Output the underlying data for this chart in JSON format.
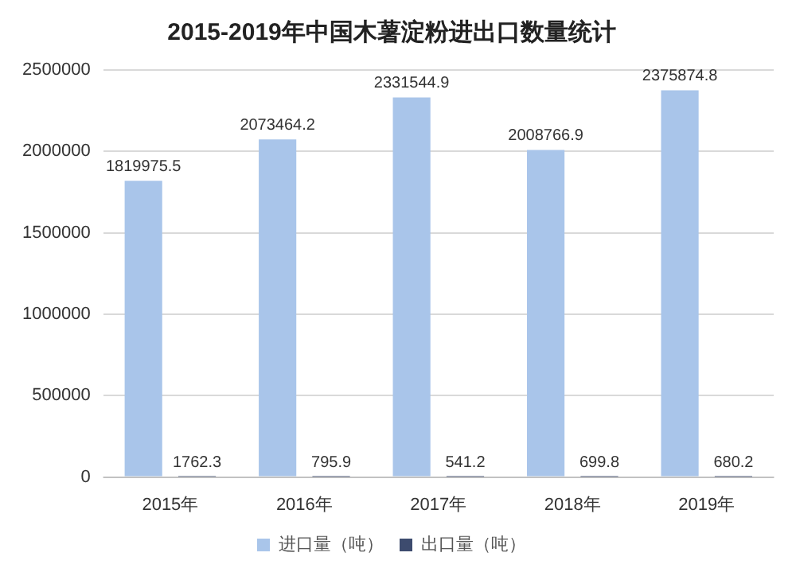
{
  "chart_data": {
    "type": "bar",
    "title": "2015-2019年中国木薯淀粉进出口数量统计",
    "categories": [
      "2015年",
      "2016年",
      "2017年",
      "2018年",
      "2019年"
    ],
    "series": [
      {
        "name": "进口量（吨）",
        "color": "#a9c5ea",
        "values": [
          1819975.5,
          2073464.2,
          2331544.9,
          2008766.9,
          2375874.8
        ]
      },
      {
        "name": "出口量（吨）",
        "color": "#3d4b6e",
        "values": [
          1762.3,
          795.9,
          541.2,
          699.8,
          680.2
        ]
      }
    ],
    "ylim": [
      0,
      2500000
    ],
    "yticks": [
      0,
      500000,
      1000000,
      1500000,
      2000000,
      2500000
    ],
    "grid": "y",
    "legend": "bottom",
    "data_labels": true
  }
}
